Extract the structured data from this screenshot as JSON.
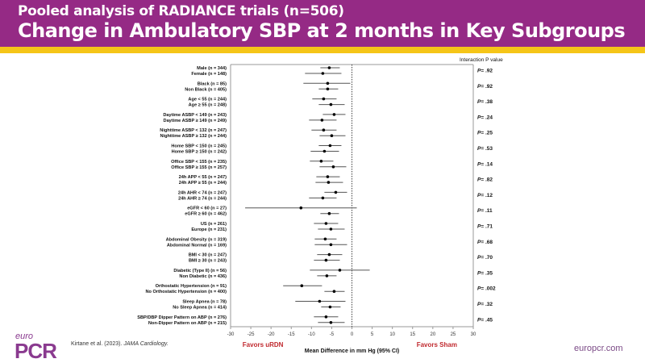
{
  "header": {
    "subtitle": "Pooled analysis of RADIANCE trials (n=506)",
    "title": "Change in Ambulatory SBP at 2 months in Key Subgroups"
  },
  "footer": {
    "logo_top": "euro",
    "logo_main": "PCR",
    "citation_authors": "Kirtane et al. (2023).",
    "citation_journal": "JAMA Cardiology.",
    "website": "europcr.com"
  },
  "colors": {
    "header_bg": "#952a85",
    "accent_bar": "#f5c518",
    "favors_text": "#c0292e",
    "brand_purple": "#8a3a8f"
  },
  "chart_data": {
    "type": "forest",
    "title": "Change in Ambulatory SBP at 2 months in Key Subgroups",
    "xlabel": "Mean Difference in mm Hg (95% CI)",
    "xlim": [
      -30,
      30
    ],
    "xticks": [
      -30,
      -25,
      -20,
      -15,
      -10,
      -5,
      0,
      5,
      10,
      15,
      20,
      25,
      30
    ],
    "reference_line": 0,
    "left_annotation": "Favors uRDN",
    "right_annotation": "Favors Sham",
    "pvalue_header": "Interaction P value",
    "pvalue_prefix": "P",
    "groups": [
      {
        "p": "= .92",
        "rows": [
          {
            "label": "Male (n = 344)",
            "est": -5.6,
            "lo": -7.8,
            "hi": -3.0
          },
          {
            "label": "Female (n = 148)",
            "est": -7.2,
            "lo": -11.6,
            "hi": -2.6
          }
        ]
      },
      {
        "p": "= .92",
        "rows": [
          {
            "label": "Black (n = 85)",
            "est": -6.0,
            "lo": -12.0,
            "hi": -0.4
          },
          {
            "label": "Non Black (n = 405)",
            "est": -6.0,
            "lo": -8.2,
            "hi": -3.4
          }
        ]
      },
      {
        "p": "= .38",
        "rows": [
          {
            "label": "Age < 55 (n = 244)",
            "est": -7.0,
            "lo": -9.8,
            "hi": -3.8
          },
          {
            "label": "Age ≥ 55 (n = 248)",
            "est": -5.2,
            "lo": -8.2,
            "hi": -1.8
          }
        ]
      },
      {
        "p": "= .24",
        "rows": [
          {
            "label": "Daytime ASBP < 149 (n = 243)",
            "est": -4.4,
            "lo": -7.2,
            "hi": -1.6
          },
          {
            "label": "Daytime ASBP ≥ 149 (n = 249)",
            "est": -7.4,
            "lo": -10.6,
            "hi": -3.8
          }
        ]
      },
      {
        "p": "= .25",
        "rows": [
          {
            "label": "Nighttime ASBP < 132 (n = 247)",
            "est": -7.0,
            "lo": -10.0,
            "hi": -3.8
          },
          {
            "label": "Nighttime ASBP ≥ 132 (n = 244)",
            "est": -5.0,
            "lo": -8.0,
            "hi": -1.6
          }
        ]
      },
      {
        "p": "= .53",
        "rows": [
          {
            "label": "Home SBP < 150 (n = 245)",
            "est": -5.4,
            "lo": -8.2,
            "hi": -2.6
          },
          {
            "label": "Home SBP ≥ 150 (n = 242)",
            "est": -6.8,
            "lo": -10.2,
            "hi": -3.2
          }
        ]
      },
      {
        "p": "= .14",
        "rows": [
          {
            "label": "Office SBP < 155 (n = 235)",
            "est": -7.6,
            "lo": -10.4,
            "hi": -4.6
          },
          {
            "label": "Office SBP ≥ 155 (n = 257)",
            "est": -4.6,
            "lo": -8.0,
            "hi": -1.4
          }
        ]
      },
      {
        "p": "= .82",
        "rows": [
          {
            "label": "24h APP < 55 (n = 247)",
            "est": -6.0,
            "lo": -8.8,
            "hi": -3.0
          },
          {
            "label": "24h APP ≥ 55 (n = 244)",
            "est": -5.8,
            "lo": -9.0,
            "hi": -2.2
          }
        ]
      },
      {
        "p": "= .12",
        "rows": [
          {
            "label": "24h AHR < 74 (n = 247)",
            "est": -4.0,
            "lo": -6.8,
            "hi": -1.2
          },
          {
            "label": "24h AHR ≥ 74 (n = 244)",
            "est": -7.2,
            "lo": -10.6,
            "hi": -3.8
          }
        ]
      },
      {
        "p": "= .11",
        "rows": [
          {
            "label": "eGFR < 60 (n = 27)",
            "est": -12.6,
            "lo": -26.4,
            "hi": 1.2
          },
          {
            "label": "eGFR ≥ 60 (n = 462)",
            "est": -5.6,
            "lo": -7.8,
            "hi": -3.2
          }
        ]
      },
      {
        "p": "= .71",
        "rows": [
          {
            "label": "US (n = 261)",
            "est": -6.4,
            "lo": -9.4,
            "hi": -3.4
          },
          {
            "label": "Europe (n = 231)",
            "est": -5.2,
            "lo": -8.4,
            "hi": -1.8
          }
        ]
      },
      {
        "p": "= .68",
        "rows": [
          {
            "label": "Abdominal Obesity (n = 319)",
            "est": -6.6,
            "lo": -9.2,
            "hi": -3.8
          },
          {
            "label": "Abdominal Normal (n = 169)",
            "est": -5.2,
            "lo": -9.2,
            "hi": -1.2
          }
        ]
      },
      {
        "p": "= .70",
        "rows": [
          {
            "label": "BMI < 30 (n = 247)",
            "est": -5.6,
            "lo": -8.6,
            "hi": -2.4
          },
          {
            "label": "BMI ≥ 30 (n = 243)",
            "est": -6.4,
            "lo": -9.4,
            "hi": -3.0
          }
        ]
      },
      {
        "p": "= .35",
        "rows": [
          {
            "label": "Diabetic (Type II) (n = 56)",
            "est": -3.0,
            "lo": -10.4,
            "hi": 4.4
          },
          {
            "label": "Non Diabetic (n = 436)",
            "est": -6.2,
            "lo": -8.6,
            "hi": -3.8
          }
        ]
      },
      {
        "p": "= .002",
        "rows": [
          {
            "label": "Orthostatic Hypertension (n = 91)",
            "est": -12.4,
            "lo": -17.0,
            "hi": -7.4
          },
          {
            "label": "No Orthostatic Hypertension (n = 400)",
            "est": -4.4,
            "lo": -6.8,
            "hi": -1.8
          }
        ]
      },
      {
        "p": "= .32",
        "rows": [
          {
            "label": "Sleep Apnea (n = 78)",
            "est": -8.0,
            "lo": -14.0,
            "hi": -1.6
          },
          {
            "label": "No Sleep Apnea (n = 414)",
            "est": -5.4,
            "lo": -7.6,
            "hi": -2.8
          }
        ]
      },
      {
        "p": "= .45",
        "rows": [
          {
            "label": "SBP/DBP Dipper Pattern on ABP (n = 276)",
            "est": -6.4,
            "lo": -9.4,
            "hi": -3.4
          },
          {
            "label": "Non-Dipper Pattern on ABP (n = 215)",
            "est": -5.2,
            "lo": -8.4,
            "hi": -1.8
          }
        ]
      }
    ]
  }
}
